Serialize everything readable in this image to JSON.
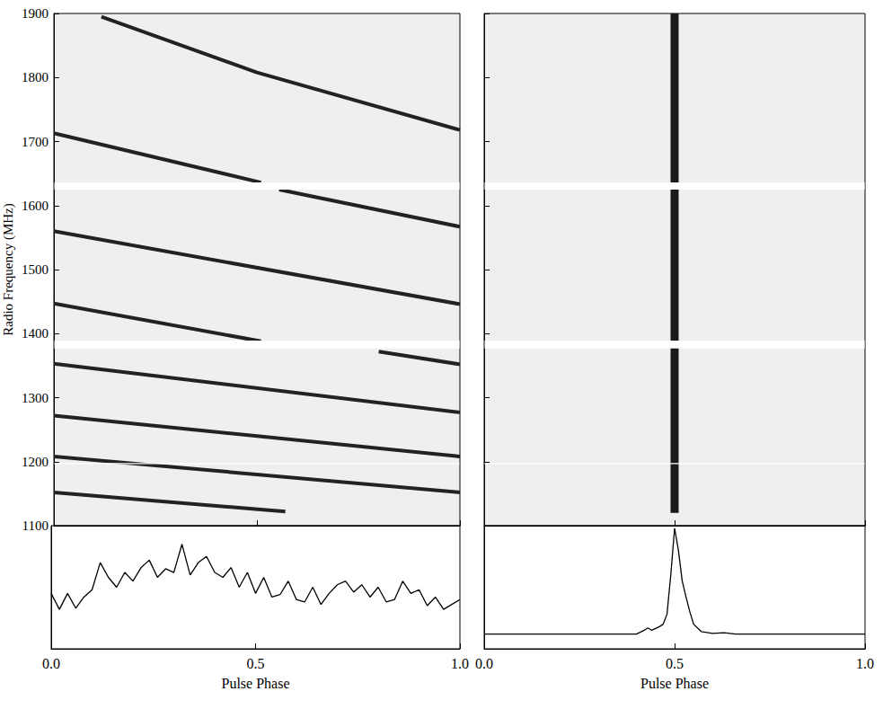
{
  "chart_data": [
    {
      "type": "line",
      "ylabel": "Radio Frequency (MHz)",
      "xlim": [
        0,
        1
      ],
      "ylim": [
        1100,
        1900
      ],
      "xticks": [
        0,
        0.5,
        1
      ],
      "yticks": [
        1100,
        1200,
        1300,
        1400,
        1500,
        1600,
        1700,
        1800,
        1900
      ],
      "tick_labels": "y",
      "color": "#222222",
      "masked_bands": [
        [
          1625,
          1636
        ],
        [
          1377,
          1389
        ],
        [
          1196,
          1198
        ]
      ],
      "series": [
        {
          "x": [
            0.117,
            0.5,
            1.0
          ],
          "values": [
            1895,
            1808,
            1718
          ]
        },
        {
          "x": [
            0.0,
            0.51
          ],
          "values": [
            1713,
            1636
          ]
        },
        {
          "x": [
            0.555,
            1.0
          ],
          "values": [
            1625,
            1567
          ]
        },
        {
          "x": [
            0.0,
            1.0
          ],
          "values": [
            1560,
            1446
          ]
        },
        {
          "x": [
            0.0,
            0.51
          ],
          "values": [
            1447,
            1388
          ]
        },
        {
          "x": [
            0.8,
            1.0
          ],
          "values": [
            1372,
            1352
          ]
        },
        {
          "x": [
            0.0,
            1.0
          ],
          "values": [
            1353,
            1277
          ]
        },
        {
          "x": [
            0.0,
            1.0
          ],
          "values": [
            1272,
            1208
          ]
        },
        {
          "x": [
            0.0,
            1.0
          ],
          "values": [
            1208,
            1152
          ]
        },
        {
          "x": [
            0.0,
            0.57
          ],
          "values": [
            1152,
            1122
          ]
        }
      ]
    },
    {
      "type": "line",
      "xlim": [
        0,
        1
      ],
      "ylim": [
        1100,
        1900
      ],
      "xticks": [
        0,
        0.5,
        1
      ],
      "yticks": [
        1100,
        1200,
        1300,
        1400,
        1500,
        1600,
        1700,
        1800,
        1900
      ],
      "tick_labels": false,
      "color": "#1a1a1a",
      "masked_bands": [
        [
          1625,
          1636
        ],
        [
          1377,
          1389
        ],
        [
          1196,
          1198
        ]
      ],
      "series": [
        {
          "x": [
            0.5,
            0.5
          ],
          "values": [
            1120,
            1900
          ]
        }
      ]
    },
    {
      "type": "line",
      "xlabel": "Pulse Phase",
      "xlim": [
        0,
        1
      ],
      "ylim": [
        0,
        1
      ],
      "xticks": [
        {
          "value": 0,
          "label": "0.0"
        },
        {
          "value": 0.5,
          "label": "0.5"
        },
        {
          "value": 1,
          "label": "1.0"
        }
      ],
      "tick_labels": "x",
      "color": "#000000",
      "x": [
        0.0,
        0.02,
        0.04,
        0.06,
        0.08,
        0.1,
        0.12,
        0.14,
        0.16,
        0.18,
        0.2,
        0.22,
        0.24,
        0.26,
        0.28,
        0.3,
        0.32,
        0.34,
        0.36,
        0.38,
        0.4,
        0.42,
        0.44,
        0.46,
        0.48,
        0.5,
        0.52,
        0.54,
        0.56,
        0.58,
        0.6,
        0.62,
        0.64,
        0.66,
        0.68,
        0.7,
        0.72,
        0.74,
        0.76,
        0.78,
        0.8,
        0.82,
        0.84,
        0.86,
        0.88,
        0.9,
        0.92,
        0.94,
        0.96,
        0.98,
        1.0
      ],
      "values": [
        0.45,
        0.32,
        0.45,
        0.33,
        0.42,
        0.48,
        0.7,
        0.58,
        0.5,
        0.62,
        0.55,
        0.66,
        0.72,
        0.58,
        0.65,
        0.62,
        0.85,
        0.6,
        0.7,
        0.75,
        0.62,
        0.58,
        0.66,
        0.5,
        0.62,
        0.45,
        0.58,
        0.42,
        0.44,
        0.55,
        0.4,
        0.38,
        0.5,
        0.36,
        0.45,
        0.52,
        0.55,
        0.46,
        0.52,
        0.42,
        0.5,
        0.38,
        0.4,
        0.55,
        0.45,
        0.48,
        0.35,
        0.42,
        0.32,
        0.36,
        0.4
      ]
    },
    {
      "type": "line",
      "xlabel": "Pulse Phase",
      "xlim": [
        0,
        1
      ],
      "ylim": [
        0,
        1
      ],
      "xticks": [
        {
          "value": 0,
          "label": "0.0"
        },
        {
          "value": 0.5,
          "label": "0.5"
        },
        {
          "value": 1,
          "label": "1.0"
        }
      ],
      "tick_labels": "x",
      "color": "#000000",
      "x": [
        0.0,
        0.4,
        0.42,
        0.43,
        0.44,
        0.46,
        0.47,
        0.48,
        0.49,
        0.5,
        0.51,
        0.52,
        0.53,
        0.54,
        0.55,
        0.57,
        0.6,
        0.63,
        0.66,
        1.0
      ],
      "values": [
        0.12,
        0.12,
        0.15,
        0.17,
        0.15,
        0.18,
        0.2,
        0.28,
        0.6,
        0.98,
        0.8,
        0.55,
        0.42,
        0.3,
        0.2,
        0.14,
        0.125,
        0.13,
        0.12,
        0.12
      ]
    }
  ]
}
